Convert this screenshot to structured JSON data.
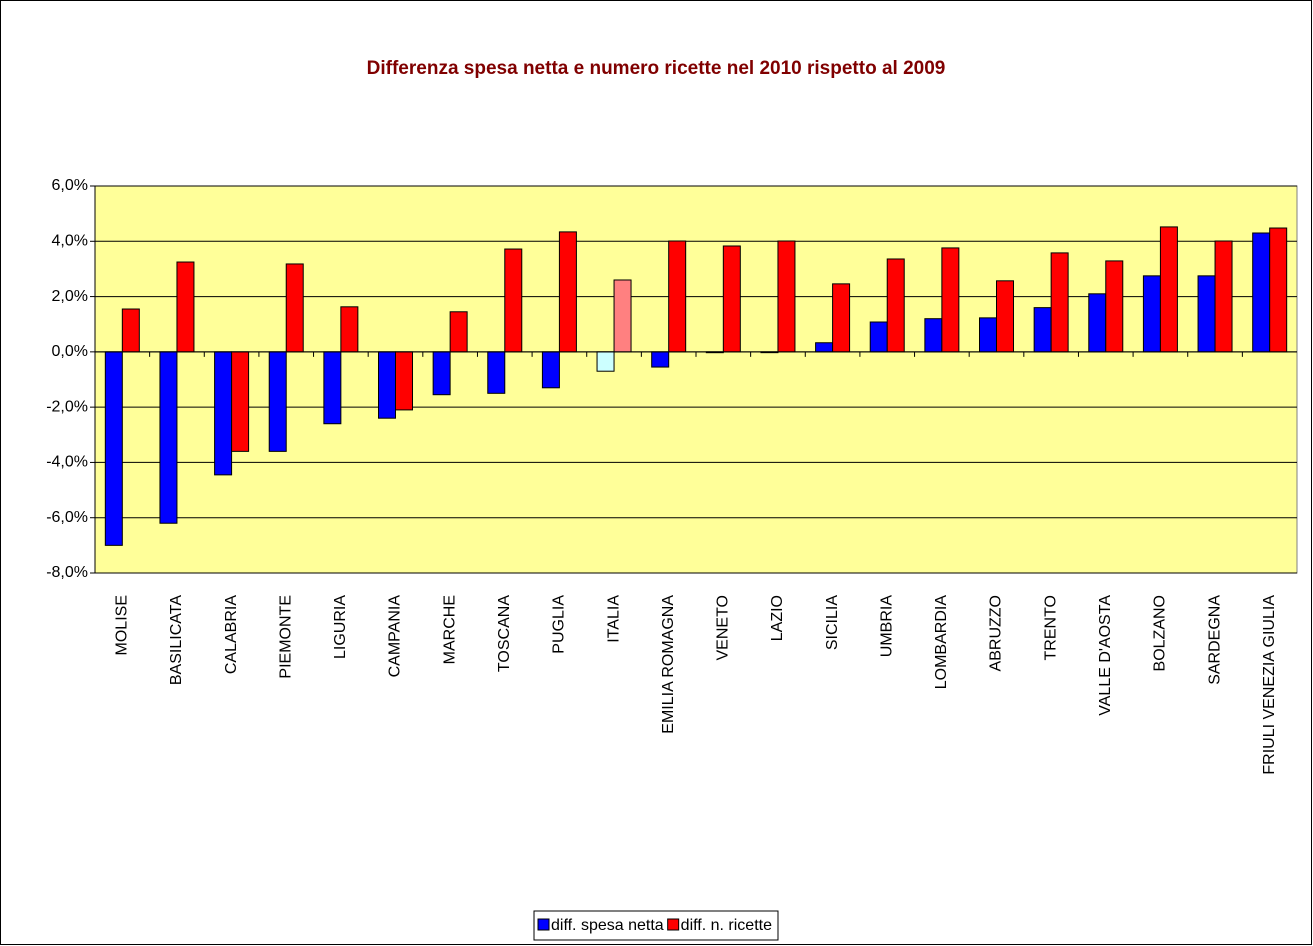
{
  "chart_data": {
    "type": "bar",
    "title": "Differenza spesa netta e numero ricette nel 2010 rispetto al 2009",
    "categories": [
      "MOLISE",
      "BASILICATA",
      "CALABRIA",
      "PIEMONTE",
      "LIGURIA",
      "CAMPANIA",
      "MARCHE",
      "TOSCANA",
      "PUGLIA",
      "ITALIA",
      "EMILIA ROMAGNA",
      "VENETO",
      "LAZIO",
      "SICILIA",
      "UMBRIA",
      "LOMBARDIA",
      "ABRUZZO",
      "TRENTO",
      "VALLE D'AOSTA",
      "BOLZANO",
      "SARDEGNA",
      "FRIULI VENEZIA GIULIA"
    ],
    "series": [
      {
        "name": "diff. spesa netta",
        "color": "#0000ff",
        "colors": [
          "#0000ff",
          "#0000ff",
          "#0000ff",
          "#0000ff",
          "#0000ff",
          "#0000ff",
          "#0000ff",
          "#0000ff",
          "#0000ff",
          "#ccffff",
          "#0000ff",
          "#0000ff",
          "#0000ff",
          "#0000ff",
          "#0000ff",
          "#0000ff",
          "#0000ff",
          "#0000ff",
          "#0000ff",
          "#0000ff",
          "#0000ff",
          "#0000ff"
        ],
        "values": [
          -7.0,
          -6.2,
          -4.45,
          -3.6,
          -2.6,
          -2.4,
          -1.55,
          -1.5,
          -1.3,
          -0.7,
          -0.55,
          -0.03,
          -0.02,
          0.33,
          1.08,
          1.2,
          1.23,
          1.6,
          2.1,
          2.75,
          2.75,
          4.3
        ]
      },
      {
        "name": "diff. n. ricette",
        "color": "#ff0000",
        "colors": [
          "#ff0000",
          "#ff0000",
          "#ff0000",
          "#ff0000",
          "#ff0000",
          "#ff0000",
          "#ff0000",
          "#ff0000",
          "#ff0000",
          "#ff8080",
          "#ff0000",
          "#ff0000",
          "#ff0000",
          "#ff0000",
          "#ff0000",
          "#ff0000",
          "#ff0000",
          "#ff0000",
          "#ff0000",
          "#ff0000",
          "#ff0000",
          "#ff0000"
        ],
        "values": [
          1.55,
          3.25,
          -3.6,
          3.18,
          1.63,
          -2.1,
          1.45,
          3.72,
          4.34,
          2.6,
          4.01,
          3.83,
          4.01,
          2.46,
          3.36,
          3.76,
          2.57,
          3.58,
          3.29,
          4.52,
          4.01,
          4.48
        ]
      }
    ],
    "ylim": [
      -8,
      6
    ],
    "yticks": [
      {
        "value": -8,
        "label": "-8,0%"
      },
      {
        "value": -6,
        "label": "-6,0%"
      },
      {
        "value": -4,
        "label": "-4,0%"
      },
      {
        "value": -2,
        "label": "-2,0%"
      },
      {
        "value": 0,
        "label": "0,0%"
      },
      {
        "value": 2,
        "label": "2,0%"
      },
      {
        "value": 4,
        "label": "4,0%"
      },
      {
        "value": 6,
        "label": "6,0%"
      }
    ],
    "grid": true,
    "plot_background": "#ffff99",
    "title_color": "#800000",
    "legend": "bottom"
  }
}
